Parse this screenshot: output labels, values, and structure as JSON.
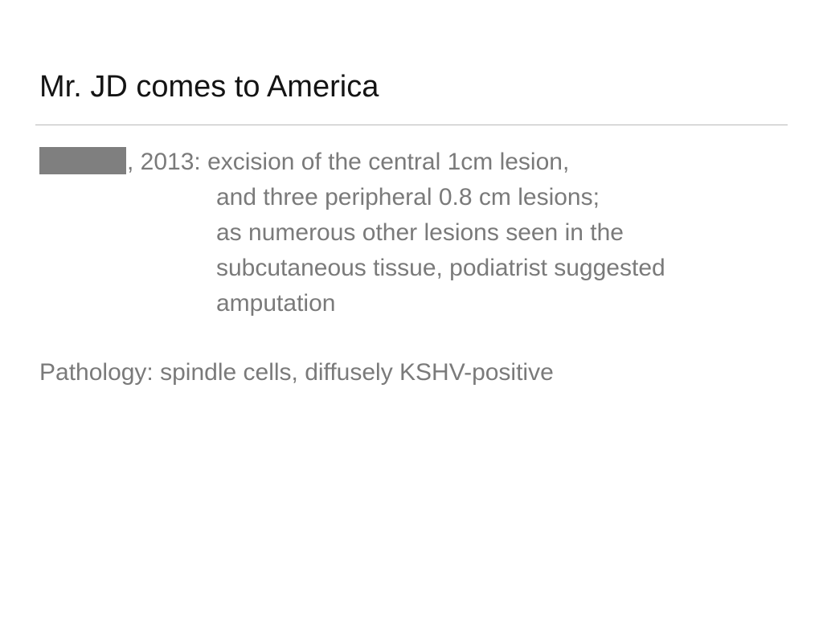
{
  "slide": {
    "title": "Mr. JD comes to America",
    "excision": {
      "line1": ", 2013: excision of the central 1cm lesion,",
      "line2": "and three peripheral 0.8 cm lesions;",
      "line3": "as numerous other lesions seen in the",
      "line4": "subcutaneous tissue, podiatrist suggested",
      "line5": "amputation"
    },
    "pathology": "Pathology: spindle cells, diffusely KSHV-positive"
  },
  "colors": {
    "title": "#141414",
    "body": "#7a7a7a",
    "rule": "#b8b8b8",
    "redaction": "#7f7f7f"
  }
}
